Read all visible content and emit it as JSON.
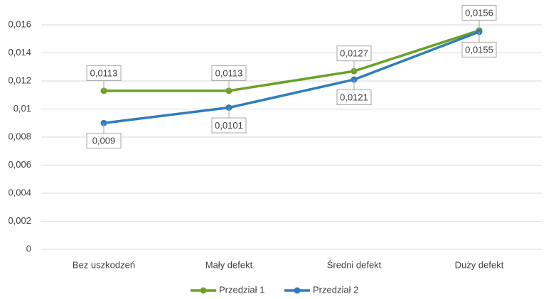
{
  "chart_data": {
    "type": "line",
    "categories": [
      "Bez uszkodzeń",
      "Mały defekt",
      "Średni defekt",
      "Duży defekt"
    ],
    "series": [
      {
        "name": "Przedział 1",
        "color": "#68a225",
        "values": [
          0.0113,
          0.0113,
          0.0127,
          0.0156
        ],
        "value_labels": [
          "0,0113",
          "0,0113",
          "0,0127",
          "0,0156"
        ]
      },
      {
        "name": "Przedział 2",
        "color": "#2e7dbf",
        "values": [
          0.009,
          0.0101,
          0.0121,
          0.0155
        ],
        "value_labels": [
          "0,009",
          "0,0101",
          "0,0121",
          "0,0155"
        ]
      }
    ],
    "ylim": [
      0,
      0.016
    ],
    "yticks": [
      0,
      {
        "value": 0.002,
        "label": "0,002"
      },
      {
        "value": 0.004,
        "label": "0,004"
      },
      {
        "value": 0.006,
        "label": "0,006"
      },
      {
        "value": 0.008,
        "label": "0,008"
      },
      {
        "value": 0.01,
        "label": "0,01"
      },
      {
        "value": 0.012,
        "label": "0,012"
      },
      {
        "value": 0.014,
        "label": "0,014"
      },
      {
        "value": 0.016,
        "label": "0,016"
      }
    ],
    "grid": true,
    "legend": "bottom"
  }
}
